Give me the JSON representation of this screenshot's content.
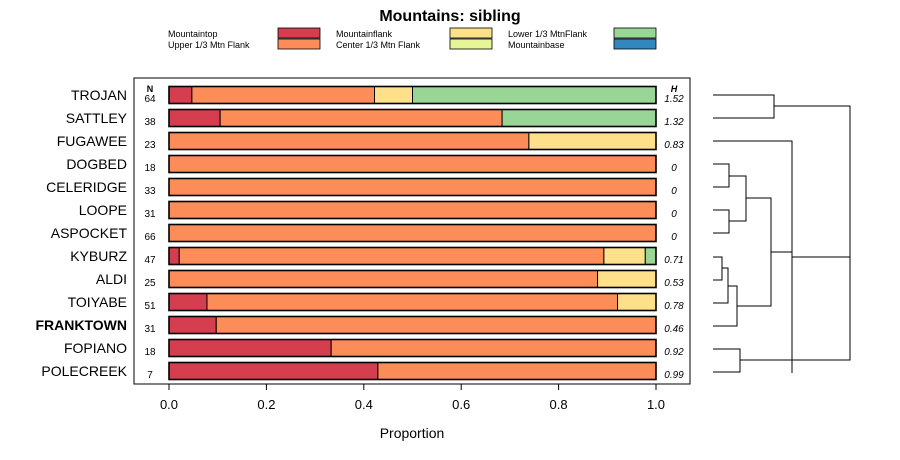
{
  "chart_data": {
    "type": "bar",
    "stacked": true,
    "orientation": "horizontal",
    "title": "Mountains: sibling",
    "xlabel": "Proportion",
    "ylabel": "",
    "xlim": [
      0,
      1
    ],
    "xticks": [
      "0.0",
      "0.2",
      "0.4",
      "0.6",
      "0.8",
      "1.0"
    ],
    "n_header": "N",
    "h_header": "H",
    "highlight_category": "FRANKTOWN",
    "legend": [
      {
        "name": "Mountaintop",
        "color": "#d53e4f"
      },
      {
        "name": "Upper 1/3 Mtn Flank",
        "color": "#fc8d59"
      },
      {
        "name": "Mountainflank",
        "color": "#fee08b"
      },
      {
        "name": "Center 1/3 Mtn Flank",
        "color": "#e6f598"
      },
      {
        "name": "Lower 1/3 MtnFlank",
        "color": "#99d594"
      },
      {
        "name": "Mountainbase",
        "color": "#3288bd"
      }
    ],
    "categories": [
      "TROJAN",
      "SATTLEY",
      "FUGAWEE",
      "DOGBED",
      "CELERIDGE",
      "LOOPE",
      "ASPOCKET",
      "KYBURZ",
      "ALDI",
      "TOIYABE",
      "FRANKTOWN",
      "FOPIANO",
      "POLECREEK"
    ],
    "n": [
      "64",
      "38",
      "23",
      "18",
      "33",
      "31",
      "66",
      "47",
      "25",
      "51",
      "31",
      "18",
      "7"
    ],
    "h": [
      "1.52",
      "1.32",
      "0.83",
      "0",
      "0",
      "0",
      "0",
      "0.71",
      "0.53",
      "0.78",
      "0.46",
      "0.92",
      "0.99"
    ],
    "series": [
      {
        "name": "Mountaintop",
        "values": [
          0.047,
          0.105,
          0,
          0,
          0,
          0,
          0,
          0.021,
          0,
          0.078,
          0.097,
          0.333,
          0.429
        ]
      },
      {
        "name": "Upper 1/3 Mtn Flank",
        "values": [
          0.375,
          0.579,
          0.739,
          1,
          1,
          1,
          1,
          0.872,
          0.88,
          0.843,
          0.903,
          0.667,
          0.571
        ]
      },
      {
        "name": "Mountainflank",
        "values": [
          0.078,
          0,
          0.261,
          0,
          0,
          0,
          0,
          0.085,
          0.12,
          0.079,
          0,
          0,
          0
        ]
      },
      {
        "name": "Center 1/3 Mtn Flank",
        "values": [
          0,
          0,
          0,
          0,
          0,
          0,
          0,
          0,
          0,
          0,
          0,
          0,
          0
        ]
      },
      {
        "name": "Lower 1/3 MtnFlank",
        "values": [
          0.5,
          0.316,
          0,
          0,
          0,
          0,
          0,
          0.022,
          0,
          0,
          0,
          0,
          0
        ]
      },
      {
        "name": "Mountainbase",
        "values": [
          0,
          0,
          0,
          0,
          0,
          0,
          0,
          0,
          0,
          0,
          0,
          0,
          0
        ]
      }
    ]
  }
}
